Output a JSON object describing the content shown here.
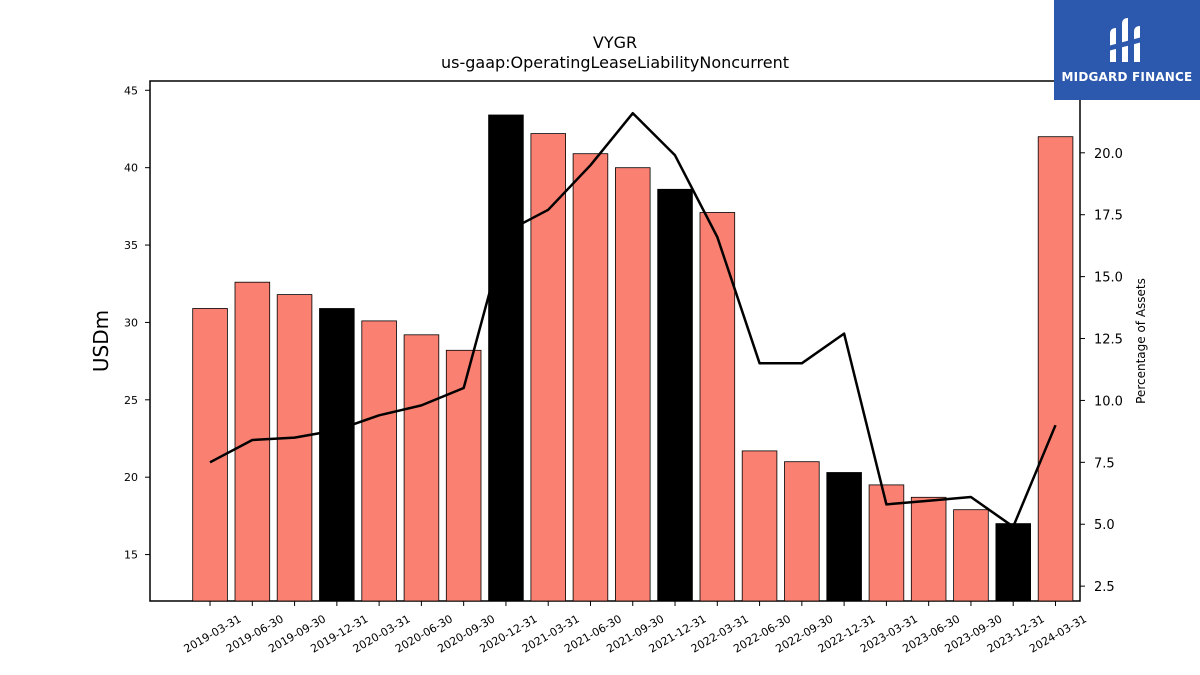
{
  "chart_data": {
    "type": "bar",
    "title": "VYGR",
    "subtitle": "us-gaap:OperatingLeaseLiabilityNoncurrent",
    "ylabel": "USDm",
    "y2label": "Percentage of Assets",
    "ylim": [
      12.0,
      45.6
    ],
    "y2lim": [
      1.9,
      22.9
    ],
    "yticks": [
      15,
      20,
      25,
      30,
      35,
      40,
      45
    ],
    "y2ticks": [
      "2.5",
      "5.0",
      "7.5",
      "10.0",
      "12.5",
      "15.0",
      "17.5",
      "20.0"
    ],
    "categories": [
      "2019-03-31",
      "2019-06-30",
      "2019-09-30",
      "2019-12-31",
      "2020-03-31",
      "2020-06-30",
      "2020-09-30",
      "2020-12-31",
      "2021-03-31",
      "2021-06-30",
      "2021-09-30",
      "2021-12-31",
      "2022-03-31",
      "2022-06-30",
      "2022-09-30",
      "2022-12-31",
      "2023-03-31",
      "2023-06-30",
      "2023-09-30",
      "2023-12-31",
      "2024-03-31"
    ],
    "series": [
      {
        "type": "bar",
        "values": [
          30.9,
          32.6,
          31.8,
          30.9,
          30.1,
          29.2,
          28.2,
          43.4,
          42.2,
          40.9,
          40.0,
          38.6,
          37.1,
          21.7,
          21.0,
          20.3,
          19.5,
          18.7,
          17.9,
          17.0,
          42.0
        ],
        "highlight": [
          3,
          7,
          11,
          15,
          19
        ]
      },
      {
        "type": "line",
        "axis": "right",
        "values": [
          7.5,
          8.4,
          8.5,
          8.8,
          9.4,
          9.8,
          10.5,
          16.8,
          17.7,
          19.5,
          21.6,
          19.9,
          16.6,
          11.5,
          11.5,
          12.7,
          5.8,
          5.95,
          6.1,
          4.9,
          9.0
        ]
      }
    ],
    "colors": {
      "bar": "#fa8072",
      "highlight": "#000000",
      "line": "#000000"
    },
    "grid": false
  },
  "logo": {
    "text": "MIDGARD FINANCE",
    "background": "#2c59ad"
  }
}
